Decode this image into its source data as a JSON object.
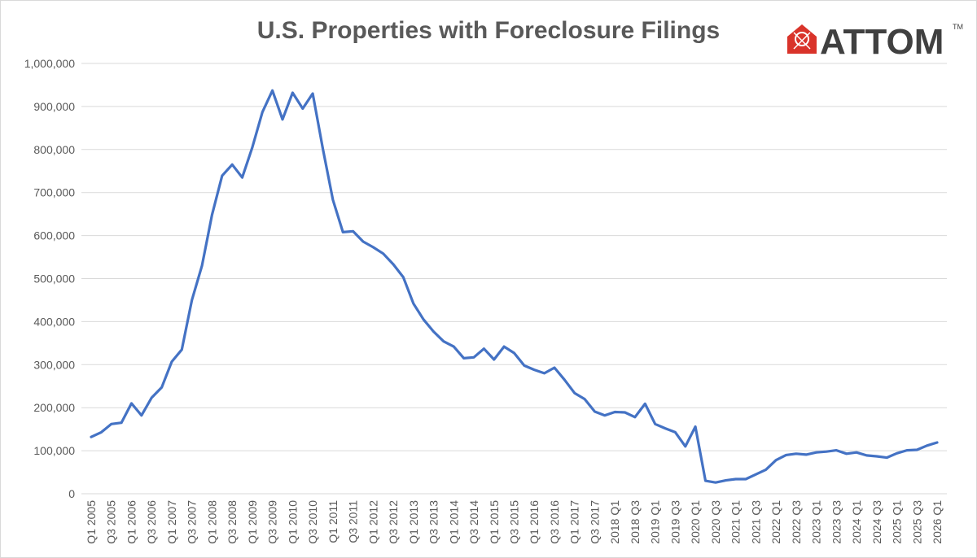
{
  "brand": {
    "name": "ATTOM",
    "tm": "TM",
    "accent": "#d9332a"
  },
  "chart_data": {
    "type": "line",
    "title": "U.S. Properties with Foreclosure Filings",
    "xlabel": "",
    "ylabel": "",
    "ylim": [
      0,
      1000000
    ],
    "y_ticks": [
      "0",
      "100,000",
      "200,000",
      "300,000",
      "400,000",
      "500,000",
      "600,000",
      "700,000",
      "800,000",
      "900,000",
      "1,000,000"
    ],
    "y_tick_values": [
      0,
      100000,
      200000,
      300000,
      400000,
      500000,
      600000,
      700000,
      800000,
      900000,
      1000000
    ],
    "grid": true,
    "legend": "none",
    "line_color": "#4472c4",
    "x_tick_labels": [
      "Q1 2005",
      "Q3 2005",
      "Q1 2006",
      "Q3 2006",
      "Q1 2007",
      "Q3 2007",
      "Q1 2008",
      "Q3 2008",
      "Q1 2009",
      "Q3 2009",
      "Q1 2010",
      "Q3 2010",
      "Q1 2011",
      "Q3 2011",
      "Q1 2012",
      "Q3 2012",
      "Q1 2013",
      "Q3 2013",
      "Q1 2014",
      "Q3 2014",
      "Q1 2015",
      "Q3 2015",
      "Q1 2016",
      "Q3 2016",
      "Q1 2017",
      "Q3 2017",
      "2018 Q1",
      "2018 Q3",
      "2019 Q1",
      "2019 Q3",
      "2020 Q1",
      "2020 Q3",
      "2021 Q1",
      "2021 Q3",
      "2022 Q1",
      "2022 Q3",
      "2023 Q1",
      "2023 Q3",
      "2024 Q1",
      "2024 Q3",
      "2025 Q1",
      "2025 Q3",
      "2026 Q1"
    ],
    "x": [
      "Q1 2005",
      "Q2 2005",
      "Q3 2005",
      "Q4 2005",
      "Q1 2006",
      "Q2 2006",
      "Q3 2006",
      "Q4 2006",
      "Q1 2007",
      "Q2 2007",
      "Q3 2007",
      "Q4 2007",
      "Q1 2008",
      "Q2 2008",
      "Q3 2008",
      "Q4 2008",
      "Q1 2009",
      "Q2 2009",
      "Q3 2009",
      "Q4 2009",
      "Q1 2010",
      "Q2 2010",
      "Q3 2010",
      "Q4 2010",
      "Q1 2011",
      "Q2 2011",
      "Q3 2011",
      "Q4 2011",
      "Q1 2012",
      "Q2 2012",
      "Q3 2012",
      "Q4 2012",
      "Q1 2013",
      "Q2 2013",
      "Q3 2013",
      "Q4 2013",
      "Q1 2014",
      "Q2 2014",
      "Q3 2014",
      "Q4 2014",
      "Q1 2015",
      "Q2 2015",
      "Q3 2015",
      "Q4 2015",
      "Q1 2016",
      "Q2 2016",
      "Q3 2016",
      "Q4 2016",
      "Q1 2017",
      "Q2 2017",
      "Q3 2017",
      "Q4 2017",
      "2018 Q1",
      "2018 Q2",
      "2018 Q3",
      "2018 Q4",
      "2019 Q1",
      "2019 Q2",
      "2019 Q3",
      "2019 Q4",
      "2020 Q1",
      "2020 Q2",
      "2020 Q3",
      "2020 Q4",
      "2021 Q1",
      "2021 Q2",
      "2021 Q3",
      "2021 Q4",
      "2022 Q1",
      "2022 Q2",
      "2022 Q3",
      "2022 Q4",
      "2023 Q1",
      "2023 Q2",
      "2023 Q3",
      "2023 Q4",
      "2024 Q1",
      "2024 Q2",
      "2024 Q3",
      "2024 Q4",
      "2025 Q1",
      "2025 Q2",
      "2025 Q3",
      "2025 Q4",
      "2026 Q1"
    ],
    "series": [
      {
        "values": [
          132000,
          143000,
          162000,
          165000,
          210000,
          182000,
          223000,
          247000,
          307000,
          335000,
          450000,
          530000,
          648000,
          739000,
          765000,
          735000,
          805000,
          887000,
          937000,
          870000,
          932000,
          895000,
          930000,
          802000,
          683000,
          608000,
          610000,
          586000,
          573000,
          558000,
          533000,
          503000,
          442000,
          405000,
          377000,
          354000,
          342000,
          315000,
          317000,
          337000,
          312000,
          342000,
          327000,
          298000,
          288000,
          280000,
          293000,
          265000,
          234000,
          220000,
          191000,
          182000,
          190000,
          189000,
          178000,
          209000,
          162000,
          152000,
          143000,
          110000,
          156000,
          30000,
          26000,
          31000,
          34000,
          34000,
          45000,
          56000,
          78000,
          90000,
          93000,
          91000,
          96000,
          98000,
          101000,
          93000,
          96000,
          89000,
          87000,
          84000,
          94000,
          101000,
          102000,
          112000,
          119000
        ]
      }
    ]
  }
}
